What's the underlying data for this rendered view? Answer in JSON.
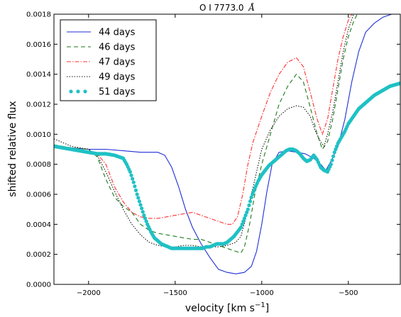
{
  "chart_data": {
    "type": "line",
    "title_main": "O I 7773.0",
    "title_unit": "Å",
    "xlabel_main": "velocity [km s",
    "xlabel_sup": "−1",
    "xlabel_end": "]",
    "ylabel": "shifted relative flux",
    "xlim": [
      -2200,
      -200
    ],
    "ylim": [
      0.0,
      0.0018
    ],
    "x_ticks": [
      -2000,
      -1500,
      -1000,
      -500
    ],
    "x_tick_labels": [
      "−2000",
      "−1500",
      "−1000",
      "−500"
    ],
    "y_ticks": [
      0.0,
      0.0002,
      0.0004,
      0.0006,
      0.0008,
      0.001,
      0.0012,
      0.0014,
      0.0016,
      0.0018
    ],
    "y_tick_labels": [
      "0.0000",
      "0.0002",
      "0.0004",
      "0.0006",
      "0.0008",
      "0.0010",
      "0.0012",
      "0.0014",
      "0.0016",
      "0.0018"
    ],
    "legend_position": "top-left",
    "series": [
      {
        "name": "44 days",
        "color": "#1f2fd6",
        "style": "solid",
        "x": [
          -2200,
          -2100,
          -2000,
          -1900,
          -1800,
          -1700,
          -1600,
          -1560,
          -1520,
          -1480,
          -1440,
          -1400,
          -1350,
          -1300,
          -1250,
          -1200,
          -1150,
          -1100,
          -1060,
          -1030,
          -1000,
          -970,
          -940,
          -900,
          -850,
          -800,
          -750,
          -700,
          -660,
          -630,
          -600,
          -560,
          -520,
          -480,
          -440,
          -400,
          -350,
          -300,
          -250,
          -200
        ],
        "y": [
          0.00092,
          0.00091,
          0.0009,
          0.0009,
          0.00089,
          0.00088,
          0.00088,
          0.00086,
          0.00078,
          0.00065,
          0.0005,
          0.00038,
          0.00027,
          0.00018,
          0.0001,
          8e-05,
          7e-05,
          8e-05,
          0.00012,
          0.00022,
          0.0004,
          0.00062,
          0.0008,
          0.00088,
          0.00089,
          0.00088,
          0.00087,
          0.00084,
          0.0008,
          0.00076,
          0.00082,
          0.00092,
          0.0011,
          0.00135,
          0.00155,
          0.00168,
          0.00174,
          0.00178,
          0.0018,
          0.00182
        ]
      },
      {
        "name": "46 days",
        "color": "#1a7a1a",
        "style": "dashed",
        "x": [
          -2200,
          -2100,
          -2000,
          -1950,
          -1900,
          -1850,
          -1800,
          -1750,
          -1700,
          -1650,
          -1600,
          -1550,
          -1500,
          -1450,
          -1400,
          -1350,
          -1300,
          -1250,
          -1200,
          -1150,
          -1120,
          -1100,
          -1070,
          -1040,
          -1000,
          -950,
          -900,
          -850,
          -800,
          -760,
          -720,
          -680,
          -650,
          -620,
          -590,
          -560,
          -530,
          -500,
          -470,
          -440
        ],
        "y": [
          0.00093,
          0.00091,
          0.0009,
          0.00085,
          0.0007,
          0.00058,
          0.00052,
          0.00048,
          0.0004,
          0.00036,
          0.00034,
          0.00033,
          0.00032,
          0.00031,
          0.0003,
          0.0003,
          0.00028,
          0.00026,
          0.00024,
          0.00022,
          0.00021,
          0.00025,
          0.0004,
          0.0006,
          0.0008,
          0.001,
          0.0012,
          0.00132,
          0.0014,
          0.00135,
          0.00118,
          0.001,
          0.0009,
          0.00095,
          0.0011,
          0.0013,
          0.0015,
          0.00165,
          0.00175,
          0.00182
        ]
      },
      {
        "name": "47 days",
        "color": "#ff3030",
        "style": "dashdot",
        "x": [
          -2200,
          -2100,
          -2000,
          -1950,
          -1900,
          -1850,
          -1800,
          -1750,
          -1700,
          -1650,
          -1600,
          -1550,
          -1500,
          -1450,
          -1400,
          -1350,
          -1300,
          -1250,
          -1200,
          -1170,
          -1140,
          -1110,
          -1080,
          -1050,
          -1000,
          -950,
          -900,
          -850,
          -800,
          -760,
          -720,
          -680,
          -650,
          -620,
          -590,
          -560,
          -530,
          -500,
          -470
        ],
        "y": [
          0.00093,
          0.0009,
          0.00088,
          0.00087,
          0.0008,
          0.00065,
          0.00055,
          0.00048,
          0.00045,
          0.00044,
          0.00044,
          0.00045,
          0.00046,
          0.00047,
          0.00048,
          0.00046,
          0.00044,
          0.00042,
          0.0004,
          0.0004,
          0.00045,
          0.0006,
          0.0008,
          0.00095,
          0.00112,
          0.00128,
          0.0014,
          0.00148,
          0.00151,
          0.00145,
          0.00128,
          0.0011,
          0.001,
          0.0011,
          0.0013,
          0.0015,
          0.00165,
          0.00176,
          0.00182
        ]
      },
      {
        "name": "49 days",
        "color": "#111111",
        "style": "dotted",
        "x": [
          -2200,
          -2100,
          -2000,
          -1950,
          -1900,
          -1850,
          -1800,
          -1750,
          -1700,
          -1650,
          -1600,
          -1550,
          -1500,
          -1450,
          -1400,
          -1350,
          -1300,
          -1250,
          -1200,
          -1150,
          -1120,
          -1090,
          -1060,
          -1030,
          -1000,
          -950,
          -900,
          -850,
          -800,
          -760,
          -720,
          -690,
          -660,
          -640,
          -620,
          -590,
          -560,
          -530,
          -500,
          -470
        ],
        "y": [
          0.00097,
          0.00092,
          0.0009,
          0.00086,
          0.00075,
          0.00062,
          0.0005,
          0.0004,
          0.00033,
          0.00028,
          0.00026,
          0.00025,
          0.00025,
          0.00026,
          0.00026,
          0.00025,
          0.00025,
          0.00025,
          0.00026,
          0.00028,
          0.00032,
          0.00045,
          0.0006,
          0.00075,
          0.0009,
          0.00103,
          0.00112,
          0.00117,
          0.00119,
          0.00118,
          0.00112,
          0.00102,
          0.00095,
          0.00092,
          0.001,
          0.00115,
          0.00135,
          0.00155,
          0.0017,
          0.0018
        ]
      },
      {
        "name": "51 days",
        "color": "#1fc1c4",
        "style": "markers",
        "x": [
          -2200,
          -2100,
          -2000,
          -1950,
          -1900,
          -1850,
          -1800,
          -1780,
          -1760,
          -1740,
          -1720,
          -1700,
          -1680,
          -1660,
          -1640,
          -1620,
          -1600,
          -1580,
          -1560,
          -1540,
          -1520,
          -1500,
          -1480,
          -1460,
          -1440,
          -1420,
          -1400,
          -1380,
          -1360,
          -1340,
          -1320,
          -1300,
          -1280,
          -1260,
          -1240,
          -1220,
          -1200,
          -1180,
          -1160,
          -1140,
          -1120,
          -1100,
          -1080,
          -1060,
          -1040,
          -1020,
          -1000,
          -980,
          -960,
          -940,
          -920,
          -900,
          -880,
          -860,
          -840,
          -820,
          -800,
          -780,
          -760,
          -740,
          -720,
          -700,
          -680,
          -660,
          -640,
          -620,
          -600,
          -580,
          -560,
          -540,
          -520,
          -500,
          -470,
          -440,
          -410,
          -380,
          -350,
          -320,
          -290,
          -260,
          -230,
          -200
        ],
        "y": [
          0.00092,
          0.0009,
          0.00088,
          0.00087,
          0.00087,
          0.00086,
          0.00084,
          0.0008,
          0.00075,
          0.00068,
          0.0006,
          0.00053,
          0.00046,
          0.0004,
          0.00035,
          0.00031,
          0.00029,
          0.00027,
          0.00026,
          0.00025,
          0.00024,
          0.00024,
          0.00024,
          0.00024,
          0.00024,
          0.00024,
          0.00024,
          0.00024,
          0.00024,
          0.00024,
          0.00025,
          0.00025,
          0.00026,
          0.00027,
          0.00027,
          0.00027,
          0.00028,
          0.0003,
          0.00032,
          0.00035,
          0.00038,
          0.00044,
          0.0005,
          0.00058,
          0.00064,
          0.00069,
          0.00073,
          0.00076,
          0.00079,
          0.00081,
          0.00083,
          0.00085,
          0.00087,
          0.00089,
          0.0009,
          0.0009,
          0.00089,
          0.00087,
          0.00084,
          0.00082,
          0.00083,
          0.00086,
          0.00083,
          0.00078,
          0.00076,
          0.00075,
          0.0008,
          0.00088,
          0.00094,
          0.00098,
          0.00102,
          0.00107,
          0.00112,
          0.00117,
          0.0012,
          0.00123,
          0.00126,
          0.00128,
          0.0013,
          0.00132,
          0.00133,
          0.00134
        ]
      }
    ]
  }
}
